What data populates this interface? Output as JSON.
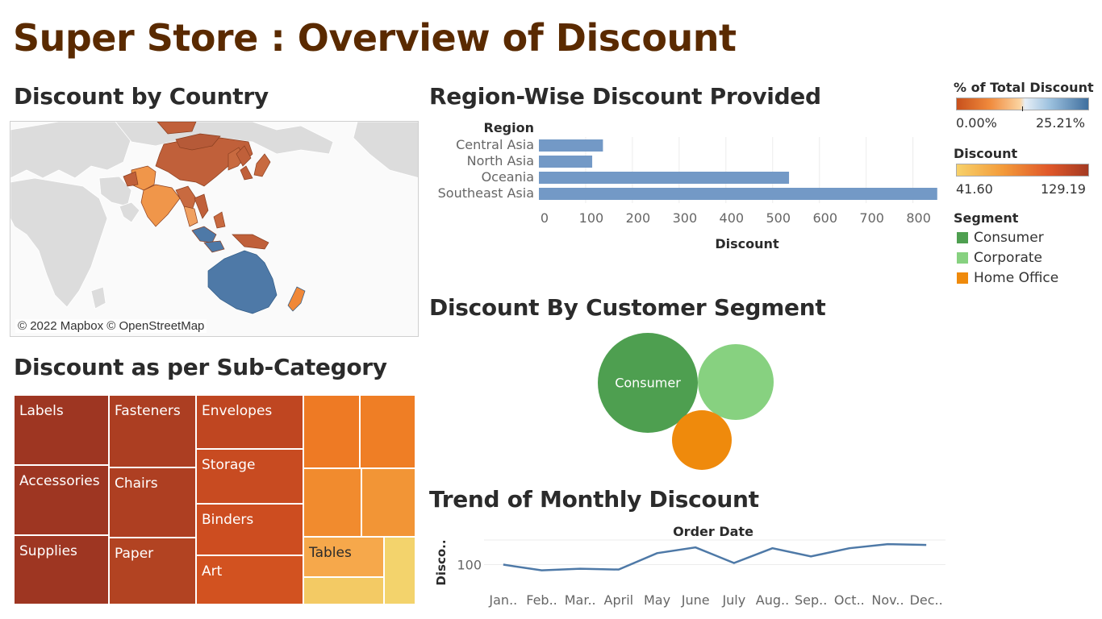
{
  "page": {
    "title": "Super Store : Overview of Discount"
  },
  "sections": {
    "country": "Discount by Country",
    "subcategory": "Discount as per Sub-Category",
    "region": "Region-Wise Discount Provided",
    "segment": "Discount By Customer Segment",
    "trend": "Trend of Monthly Discount"
  },
  "map": {
    "credit": "© 2022 Mapbox © OpenStreetMap"
  },
  "legends": {
    "pct_total": {
      "title": "% of Total Discount",
      "min": "0.00%",
      "max": "25.21%"
    },
    "discount": {
      "title": "Discount",
      "min": "41.60",
      "max": "129.19"
    },
    "segment": {
      "title": "Segment",
      "items": [
        {
          "label": "Consumer",
          "color": "#4e9f50"
        },
        {
          "label": "Corporate",
          "color": "#87d180"
        },
        {
          "label": "Home Office",
          "color": "#ef8a0c"
        }
      ]
    }
  },
  "treemap_labels": {
    "labels": "Labels",
    "accessories": "Accessories",
    "supplies": "Supplies",
    "fasteners": "Fasteners",
    "chairs": "Chairs",
    "paper": "Paper",
    "envelopes": "Envelopes",
    "storage": "Storage",
    "binders": "Binders",
    "art": "Art",
    "tables": "Tables"
  },
  "chart_data": [
    {
      "type": "bar",
      "title": "Region-Wise Discount Provided",
      "category_header": "Region",
      "xlabel": "Discount",
      "categories": [
        "Central Asia",
        "North Asia",
        "Oceania",
        "Southeast Asia"
      ],
      "values": [
        137,
        114,
        535,
        852
      ],
      "xlim": [
        0,
        880
      ],
      "ticks": [
        0,
        100,
        200,
        300,
        400,
        500,
        600,
        700,
        800
      ],
      "orientation": "horizontal",
      "color": "#7399c6",
      "grid": true
    },
    {
      "type": "bubble",
      "title": "Discount By Customer Segment",
      "series": [
        {
          "name": "Consumer",
          "value": 1,
          "color": "#4e9f50",
          "label": "Consumer"
        },
        {
          "name": "Corporate",
          "value": 0.56,
          "color": "#87d180",
          "label": ""
        },
        {
          "name": "Home Office",
          "value": 0.35,
          "color": "#ef8a0c",
          "label": ""
        }
      ]
    },
    {
      "type": "line",
      "title": "Trend of Monthly Discount",
      "xlabel": "Order Date",
      "ylabel": "Disco..",
      "categories": [
        "Jan..",
        "Feb..",
        "Mar..",
        "April",
        "May",
        "June",
        "July",
        "Aug..",
        "Sep..",
        "Oct..",
        "Nov..",
        "Dec.."
      ],
      "values": [
        100,
        93,
        95,
        94,
        114,
        121,
        102,
        120,
        110,
        120,
        125,
        124
      ],
      "yticks": [
        100
      ],
      "ylim": [
        75,
        130
      ],
      "color": "#4e79a7"
    }
  ]
}
